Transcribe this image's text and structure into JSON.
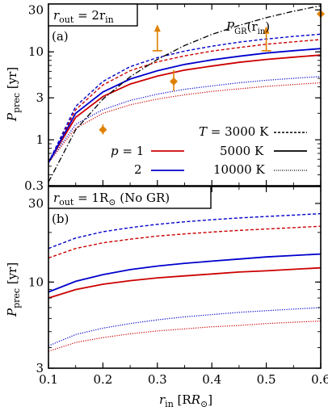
{
  "chart_data": [
    {
      "panel": "(a)",
      "type": "line",
      "title_box": "r_out = 2r_in",
      "title_main": "r",
      "title_sub": "out",
      "title_rest": " = 2r",
      "title_sub2": "in",
      "ylabel_main": "P",
      "ylabel_sub": "prec",
      "ylabel_unit": " [yr]",
      "yscale": "log",
      "ylim": [
        0.3,
        35
      ],
      "xlim": [
        0.1,
        0.6
      ],
      "yticks": [
        0.3,
        1,
        3,
        10,
        30
      ],
      "ytick_labels": [
        "0.3",
        "1",
        "3",
        "10",
        "30"
      ],
      "gr_label_main": "P",
      "gr_label_sub": "GR",
      "gr_label_arg": "(r",
      "gr_label_arg_sub": "in",
      "gr_label_close": ")",
      "x": [
        0.1,
        0.15,
        0.2,
        0.25,
        0.3,
        0.35,
        0.4,
        0.45,
        0.5,
        0.55,
        0.6
      ],
      "series": [
        {
          "p": "1",
          "T": "3000 K",
          "color": "#cc0000",
          "style": "dashed",
          "values": [
            0.55,
            2.2,
            4.2,
            6.1,
            7.7,
            9.0,
            10.2,
            11.2,
            12.2,
            13.0,
            13.8
          ]
        },
        {
          "p": "1",
          "T": "5000 K",
          "color": "#cc0000",
          "style": "solid",
          "values": [
            0.55,
            1.8,
            3.1,
            4.3,
            5.3,
            6.2,
            6.9,
            7.6,
            8.2,
            8.7,
            9.2
          ]
        },
        {
          "p": "1",
          "T": "10000 K",
          "color": "#cc0000",
          "style": "dotted",
          "values": [
            0.55,
            1.35,
            2.0,
            2.5,
            2.9,
            3.25,
            3.55,
            3.8,
            4.05,
            4.25,
            4.45
          ]
        },
        {
          "p": "2",
          "T": "3000 K",
          "color": "#0000cc",
          "style": "dashed",
          "values": [
            0.55,
            2.4,
            4.6,
            6.8,
            8.6,
            10.2,
            11.6,
            12.9,
            14.0,
            15.0,
            15.9
          ]
        },
        {
          "p": "2",
          "T": "5000 K",
          "color": "#0000cc",
          "style": "solid",
          "values": [
            0.55,
            2.0,
            3.5,
            4.9,
            6.1,
            7.2,
            8.1,
            8.9,
            9.7,
            10.3,
            10.9
          ]
        },
        {
          "p": "2",
          "T": "10000 K",
          "color": "#0000cc",
          "style": "dotted",
          "values": [
            0.55,
            1.5,
            2.2,
            2.8,
            3.3,
            3.75,
            4.1,
            4.45,
            4.75,
            5.0,
            5.25
          ]
        },
        {
          "name": "P_GR(r_in)",
          "color": "#000000",
          "style": "dashdot",
          "values": [
            0.33,
            1.3,
            2.9,
            5.2,
            8.2,
            11.8,
            15.8,
            20.0,
            24.5,
            29.0,
            33.5
          ]
        }
      ],
      "observations": [
        {
          "x": 0.2,
          "y": 1.3,
          "yerr_low": 1.15,
          "yerr_high": 1.5,
          "marker": "diamond"
        },
        {
          "x": 0.3,
          "y": 10.3,
          "lower_limit": true,
          "arrow_top": 20.5
        },
        {
          "x": 0.33,
          "y": 4.6,
          "yerr_low": 3.6,
          "yerr_high": 6.2,
          "marker": "diamond"
        },
        {
          "x": 0.5,
          "y": 10.3,
          "lower_limit": true,
          "arrow_top": 19.5
        },
        {
          "x": 0.6,
          "y": 27.0,
          "yerr_low": 24.5,
          "yerr_high": 30.5,
          "marker": "diamond"
        }
      ],
      "observation_color": "#e08000",
      "legend": {
        "p_label": "p",
        "p_values": [
          "1",
          "2"
        ],
        "T_label": "T",
        "T_values": [
          "3000 K",
          "5000 K",
          "10000 K"
        ],
        "placement": "lower-right"
      }
    },
    {
      "panel": "(b)",
      "type": "line",
      "title_main": "r",
      "title_sub": "out",
      "title_rest": " = 1R",
      "title_sun": "⊙",
      "title_note": " (No GR)",
      "ylabel_main": "P",
      "ylabel_sub": "prec",
      "ylabel_unit": " [yr]",
      "xlabel_main": "r",
      "xlabel_sub": "in",
      "xlabel_unit": " [R",
      "xlabel_sun": "⊙",
      "xlabel_close": "]",
      "yscale": "log",
      "ylim": [
        3,
        38
      ],
      "xlim": [
        0.1,
        0.6
      ],
      "yticks": [
        3,
        10,
        30
      ],
      "ytick_labels": [
        "3",
        "10",
        "30"
      ],
      "xticks": [
        0.1,
        0.2,
        0.3,
        0.4,
        0.5,
        0.6
      ],
      "xtick_labels": [
        "0.1",
        "0.2",
        "0.3",
        "0.4",
        "0.5",
        "0.6"
      ],
      "x": [
        0.1,
        0.15,
        0.2,
        0.25,
        0.3,
        0.35,
        0.4,
        0.45,
        0.5,
        0.55,
        0.6
      ],
      "series": [
        {
          "p": "1",
          "T": "3000 K",
          "color": "#cc0000",
          "style": "dashed",
          "values": [
            14.0,
            16.0,
            17.3,
            18.2,
            19.0,
            19.6,
            20.1,
            20.6,
            21.0,
            21.4,
            21.8
          ]
        },
        {
          "p": "1",
          "T": "5000 K",
          "color": "#cc0000",
          "style": "solid",
          "values": [
            8.0,
            9.0,
            9.7,
            10.2,
            10.6,
            10.9,
            11.2,
            11.5,
            11.7,
            11.95,
            12.2
          ]
        },
        {
          "p": "1",
          "T": "10000 K",
          "color": "#cc0000",
          "style": "dotted",
          "values": [
            3.8,
            4.3,
            4.6,
            4.85,
            5.05,
            5.2,
            5.35,
            5.45,
            5.6,
            5.7,
            5.8
          ]
        },
        {
          "p": "2",
          "T": "3000 K",
          "color": "#0000cc",
          "style": "dashed",
          "values": [
            16.0,
            18.5,
            20.2,
            21.4,
            22.4,
            23.2,
            23.9,
            24.5,
            25.0,
            25.5,
            26.0
          ]
        },
        {
          "p": "2",
          "T": "5000 K",
          "color": "#0000cc",
          "style": "solid",
          "values": [
            8.7,
            10.1,
            11.1,
            11.9,
            12.5,
            13.0,
            13.4,
            13.8,
            14.2,
            14.5,
            14.8
          ]
        },
        {
          "p": "2",
          "T": "10000 K",
          "color": "#0000cc",
          "style": "dotted",
          "values": [
            4.1,
            4.8,
            5.25,
            5.6,
            5.9,
            6.15,
            6.35,
            6.55,
            6.7,
            6.85,
            7.0
          ]
        }
      ]
    }
  ]
}
